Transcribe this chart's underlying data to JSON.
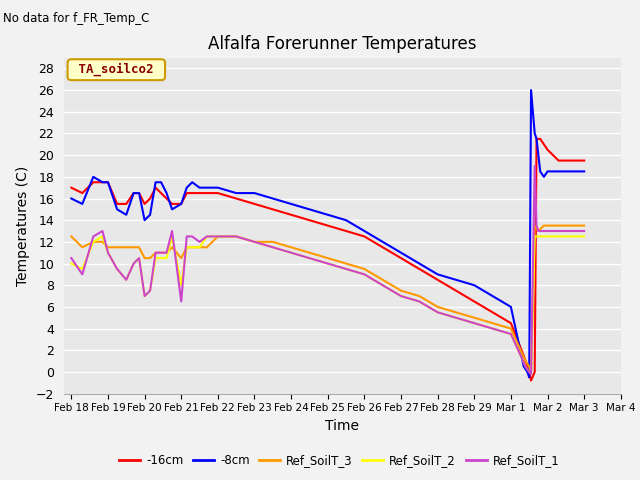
{
  "title": "Alfalfa Forerunner Temperatures",
  "subtitle": "No data for f_FR_Temp_C",
  "xlabel": "Time",
  "ylabel": "Temperatures (C)",
  "ylim": [
    -2,
    29
  ],
  "yticks": [
    -2,
    0,
    2,
    4,
    6,
    8,
    10,
    12,
    14,
    16,
    18,
    20,
    22,
    24,
    26,
    28
  ],
  "legend_label": "TA_soilco2",
  "legend_bg": "#ffffc8",
  "legend_border": "#cc9900",
  "series": {
    "red_16cm": {
      "label": "-16cm",
      "color": "#ff0000",
      "x": [
        0.0,
        0.3,
        0.6,
        0.85,
        1.0,
        1.25,
        1.5,
        1.7,
        1.85,
        2.0,
        2.15,
        2.3,
        2.45,
        2.6,
        2.75,
        3.0,
        3.15,
        3.3,
        3.5,
        3.7,
        4.0,
        4.5,
        5.0,
        5.5,
        6.0,
        6.5,
        7.0,
        7.5,
        8.0,
        8.5,
        9.0,
        9.5,
        10.0,
        10.5,
        11.0,
        11.5,
        12.0,
        12.35,
        12.45,
        12.5,
        12.55,
        12.65,
        12.7,
        12.8,
        12.9,
        13.0,
        13.3,
        13.7,
        14.0
      ],
      "y": [
        17.0,
        16.5,
        17.5,
        17.5,
        17.5,
        15.5,
        15.5,
        16.5,
        16.5,
        15.5,
        16.0,
        17.0,
        16.5,
        16.0,
        15.5,
        15.5,
        16.5,
        16.5,
        16.5,
        16.5,
        16.5,
        16.0,
        15.5,
        15.0,
        14.5,
        14.0,
        13.5,
        13.0,
        12.5,
        11.5,
        10.5,
        9.5,
        8.5,
        7.5,
        6.5,
        5.5,
        4.5,
        1.5,
        0.5,
        0.0,
        -0.8,
        0.0,
        21.5,
        21.5,
        21.0,
        20.5,
        19.5,
        19.5,
        19.5
      ]
    },
    "blue_8cm": {
      "label": "-8cm",
      "color": "#0000ff",
      "x": [
        0.0,
        0.3,
        0.6,
        0.85,
        1.0,
        1.25,
        1.5,
        1.7,
        1.85,
        2.0,
        2.15,
        2.3,
        2.45,
        2.6,
        2.75,
        3.0,
        3.15,
        3.3,
        3.5,
        3.7,
        4.0,
        4.5,
        5.0,
        5.5,
        6.0,
        6.5,
        7.0,
        7.5,
        8.0,
        8.5,
        9.0,
        9.5,
        10.0,
        10.5,
        11.0,
        11.5,
        12.0,
        12.35,
        12.45,
        12.5,
        12.55,
        12.65,
        12.7,
        12.75,
        12.8,
        12.9,
        13.0,
        13.3,
        13.7,
        14.0
      ],
      "y": [
        16.0,
        15.5,
        18.0,
        17.5,
        17.5,
        15.0,
        14.5,
        16.5,
        16.5,
        14.0,
        14.5,
        17.5,
        17.5,
        16.5,
        15.0,
        15.5,
        17.0,
        17.5,
        17.0,
        17.0,
        17.0,
        16.5,
        16.5,
        16.0,
        15.5,
        15.0,
        14.5,
        14.0,
        13.0,
        12.0,
        11.0,
        10.0,
        9.0,
        8.5,
        8.0,
        7.0,
        6.0,
        0.5,
        0.0,
        -0.5,
        26.0,
        22.0,
        21.5,
        20.0,
        18.5,
        18.0,
        18.5,
        18.5,
        18.5,
        18.5
      ]
    },
    "orange_ref3": {
      "label": "Ref_SoilT_3",
      "color": "#ff9900",
      "x": [
        0.0,
        0.3,
        0.6,
        0.85,
        1.0,
        1.25,
        1.5,
        1.7,
        1.85,
        2.0,
        2.15,
        2.3,
        2.6,
        2.75,
        3.0,
        3.15,
        3.3,
        3.5,
        3.7,
        4.0,
        4.5,
        5.0,
        5.5,
        6.0,
        6.5,
        7.0,
        7.5,
        8.0,
        8.5,
        9.0,
        9.5,
        10.0,
        10.5,
        11.0,
        11.5,
        12.0,
        12.4,
        12.5,
        12.55,
        12.65,
        12.75,
        12.9,
        13.0,
        13.3,
        13.7,
        14.0
      ],
      "y": [
        12.5,
        11.5,
        12.0,
        12.0,
        11.5,
        11.5,
        11.5,
        11.5,
        11.5,
        10.5,
        10.5,
        11.0,
        11.0,
        11.5,
        10.5,
        11.5,
        11.5,
        11.5,
        11.5,
        12.5,
        12.5,
        12.0,
        12.0,
        11.5,
        11.0,
        10.5,
        10.0,
        9.5,
        8.5,
        7.5,
        7.0,
        6.0,
        5.5,
        5.0,
        4.5,
        4.0,
        1.0,
        0.5,
        0.0,
        13.5,
        13.0,
        13.5,
        13.5,
        13.5,
        13.5,
        13.5
      ]
    },
    "yellow_ref2": {
      "label": "Ref_SoilT_2",
      "color": "#ffff00",
      "x": [
        0.0,
        0.3,
        0.6,
        0.85,
        1.0,
        1.25,
        1.5,
        1.7,
        1.85,
        2.0,
        2.15,
        2.3,
        2.6,
        2.75,
        3.0,
        3.15,
        3.3,
        3.5,
        3.7,
        4.0,
        4.5,
        5.0,
        5.5,
        6.0,
        6.5,
        7.0,
        7.5,
        8.0,
        8.5,
        9.0,
        9.5,
        10.0,
        10.5,
        11.0,
        11.5,
        12.0,
        12.4,
        12.5,
        12.55,
        12.65,
        12.75,
        12.9,
        13.0,
        13.3,
        13.7,
        14.0
      ],
      "y": [
        10.0,
        9.5,
        12.0,
        12.5,
        11.0,
        9.5,
        8.5,
        10.0,
        10.5,
        7.0,
        7.5,
        10.5,
        10.5,
        12.5,
        8.0,
        11.5,
        11.5,
        11.5,
        12.5,
        12.5,
        12.5,
        12.0,
        11.5,
        11.0,
        10.5,
        10.0,
        9.5,
        9.0,
        8.0,
        7.0,
        6.5,
        5.5,
        5.0,
        4.5,
        4.0,
        3.5,
        0.5,
        0.0,
        -0.2,
        12.5,
        12.5,
        12.5,
        12.5,
        12.5,
        12.5,
        12.5
      ]
    },
    "purple_ref1": {
      "label": "Ref_SoilT_1",
      "color": "#cc44cc",
      "x": [
        0.0,
        0.3,
        0.6,
        0.85,
        1.0,
        1.25,
        1.5,
        1.7,
        1.85,
        2.0,
        2.15,
        2.3,
        2.6,
        2.75,
        3.0,
        3.15,
        3.3,
        3.5,
        3.7,
        4.0,
        4.5,
        5.0,
        5.5,
        6.0,
        6.5,
        7.0,
        7.5,
        8.0,
        8.5,
        9.0,
        9.5,
        10.0,
        10.5,
        11.0,
        11.5,
        12.0,
        12.4,
        12.5,
        12.55,
        12.65,
        12.7,
        12.75,
        12.9,
        13.0,
        13.3,
        13.7,
        14.0
      ],
      "y": [
        10.5,
        9.0,
        12.5,
        13.0,
        11.0,
        9.5,
        8.5,
        10.0,
        10.5,
        7.0,
        7.5,
        11.0,
        11.0,
        13.0,
        6.5,
        12.5,
        12.5,
        12.0,
        12.5,
        12.5,
        12.5,
        12.0,
        11.5,
        11.0,
        10.5,
        10.0,
        9.5,
        9.0,
        8.0,
        7.0,
        6.5,
        5.5,
        5.0,
        4.5,
        4.0,
        3.5,
        0.5,
        0.0,
        -0.2,
        19.0,
        13.5,
        13.0,
        13.0,
        13.0,
        13.0,
        13.0,
        13.0
      ]
    }
  },
  "x_tick_labels": [
    "Feb 18",
    "Feb 19",
    "Feb 20",
    "Feb 21",
    "Feb 22",
    "Feb 23",
    "Feb 24",
    "Feb 25",
    "Feb 26",
    "Feb 27",
    "Feb 28",
    "Feb 29",
    "Mar 1",
    "Mar 2",
    "Mar 3",
    "Mar 4"
  ],
  "x_tick_positions": [
    0,
    1,
    2,
    3,
    4,
    5,
    6,
    7,
    8,
    9,
    10,
    11,
    12,
    13,
    14,
    15
  ],
  "xlim": [
    -0.2,
    14.5
  ],
  "bg_color": "#e8e8e8",
  "plot_bg": "#e8e8e8",
  "fig_bg": "#f2f2f2",
  "grid_color": "#ffffff"
}
